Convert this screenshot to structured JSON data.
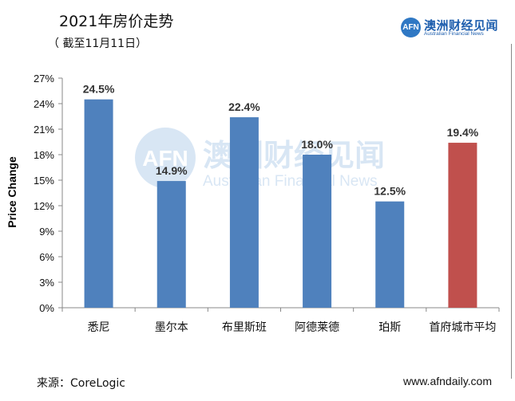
{
  "header": {
    "title": "2021年房价走势",
    "subtitle": "（ 截至11月11日）"
  },
  "brand": {
    "badge": "AFN",
    "name_cn": "澳洲财经见闻",
    "name_en": "Australian Financial News"
  },
  "watermark": {
    "badge": "AFN",
    "name_cn": "澳洲财经见闻",
    "name_en": "Australian Financial News"
  },
  "footer": {
    "source": "来源：CoreLogic",
    "website": "www.afndaily.com"
  },
  "colors": {
    "bar_default": "#4f81bd",
    "bar_highlight": "#c0504d"
  },
  "chart_data": {
    "type": "bar",
    "ylabel": "Price Change",
    "ylim": [
      0,
      27
    ],
    "yticks": [
      0,
      3,
      6,
      9,
      12,
      15,
      18,
      21,
      24,
      27
    ],
    "ytick_labels": [
      "0%",
      "3%",
      "6%",
      "9%",
      "12%",
      "15%",
      "18%",
      "21%",
      "24%",
      "27%"
    ],
    "grid": false,
    "categories": [
      "悉尼",
      "墨尔本",
      "布里斯班",
      "阿德莱德",
      "珀斯",
      "首府城市平均"
    ],
    "values": [
      24.5,
      14.9,
      22.4,
      18.0,
      12.5,
      19.4
    ],
    "data_labels": [
      "24.5%",
      "14.9%",
      "22.4%",
      "18.0%",
      "12.5%",
      "19.4%"
    ],
    "highlight_index": 5
  }
}
